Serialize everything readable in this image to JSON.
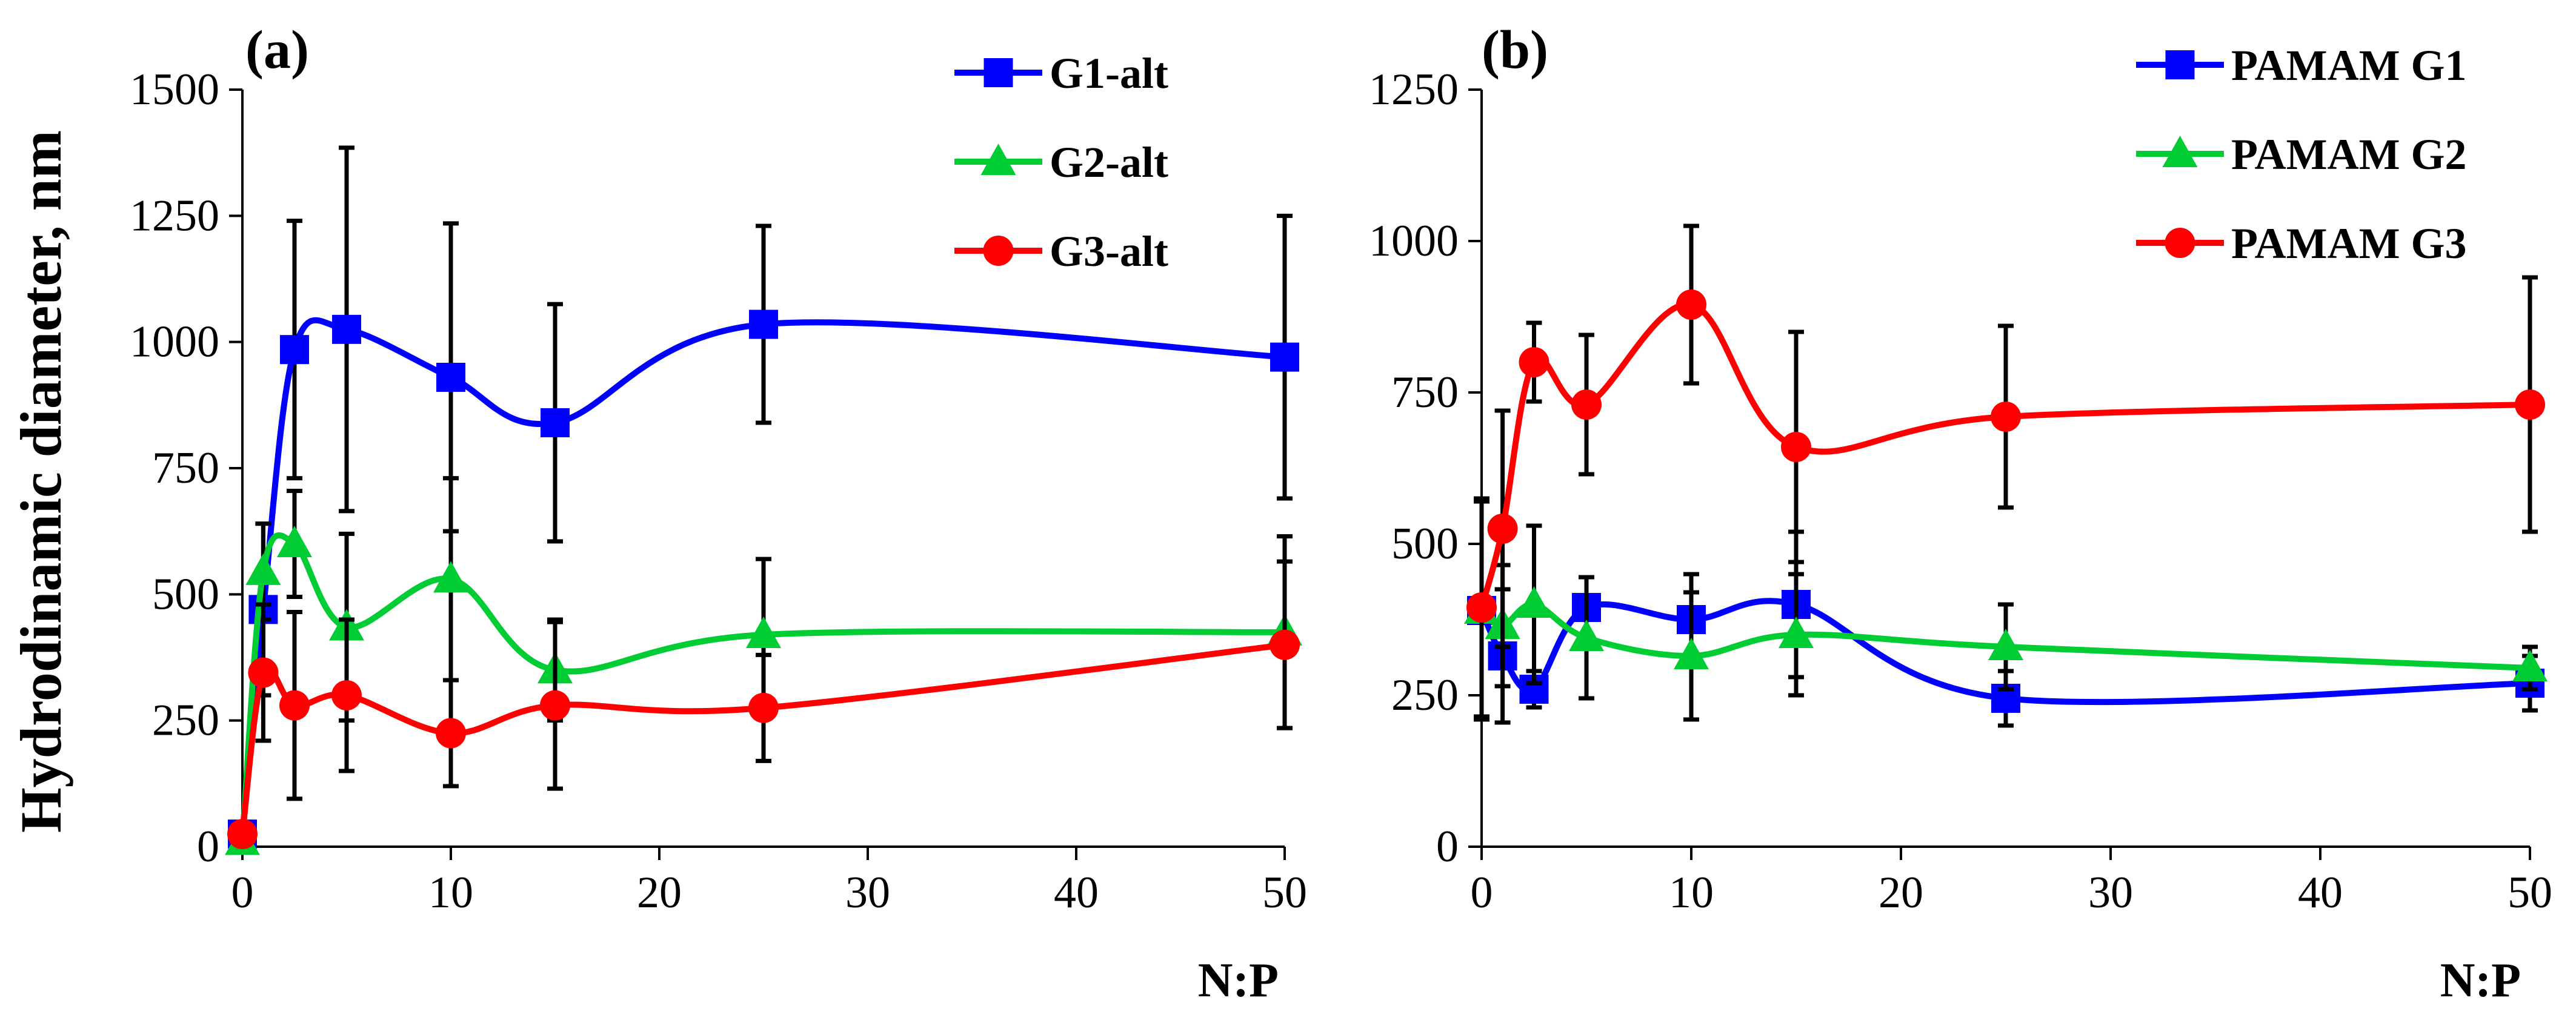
{
  "chart_data": [
    {
      "type": "line",
      "panel_label": "(a)",
      "title": "",
      "xlabel": "N:P",
      "ylabel": "Hydrodinamic diameter, nm",
      "xlim": [
        0,
        50
      ],
      "ylim": [
        0,
        1500
      ],
      "xticks": [
        "0",
        "10",
        "20",
        "30",
        "40",
        "50"
      ],
      "yticks": [
        "0",
        "250",
        "500",
        "750",
        "1000",
        "1250",
        "1500"
      ],
      "grid": false,
      "legend": "top-right",
      "x": [
        0,
        1,
        2.5,
        5,
        10,
        15,
        25,
        50
      ],
      "series": [
        {
          "name": "G1-alt",
          "color": "#0000ff",
          "marker": "square",
          "values": [
            25,
            470,
            985,
            1025,
            930,
            840,
            1035,
            970
          ],
          "errors": [
            0,
            170,
            255,
            360,
            305,
            235,
            195,
            280
          ]
        },
        {
          "name": "G2-alt",
          "color": "#00cc33",
          "marker": "triangle",
          "values": [
            10,
            545,
            600,
            435,
            530,
            350,
            420,
            425
          ],
          "errors": [
            0,
            95,
            105,
            185,
            200,
            100,
            150,
            190
          ]
        },
        {
          "name": "G3-alt",
          "color": "#ff0000",
          "marker": "circle",
          "values": [
            25,
            345,
            280,
            300,
            225,
            280,
            275,
            400
          ],
          "errors": [
            0,
            135,
            185,
            150,
            105,
            165,
            105,
            165
          ]
        }
      ]
    },
    {
      "type": "line",
      "panel_label": "(b)",
      "title": "",
      "xlabel": "N:P",
      "ylabel": "",
      "xlim": [
        0,
        50
      ],
      "ylim": [
        0,
        1250
      ],
      "xticks": [
        "0",
        "10",
        "20",
        "30",
        "40",
        "50"
      ],
      "yticks": [
        "0",
        "250",
        "500",
        "750",
        "1000",
        "1250"
      ],
      "grid": false,
      "legend": "top-right",
      "x": [
        0,
        1,
        2.5,
        5,
        10,
        15,
        25,
        50
      ],
      "series": [
        {
          "name": "PAMAM G1",
          "color": "#0000ff",
          "marker": "square",
          "values": [
            390,
            315,
            260,
            395,
            375,
            400,
            245,
            270
          ],
          "errors": [
            180,
            110,
            30,
            50,
            75,
            120,
            45,
            45
          ]
        },
        {
          "name": "PAMAM G2",
          "color": "#00cc33",
          "marker": "triangle",
          "values": [
            390,
            365,
            400,
            345,
            315,
            350,
            330,
            295
          ],
          "errors": [
            0,
            100,
            130,
            100,
            105,
            100,
            70,
            35
          ]
        },
        {
          "name": "PAMAM G3",
          "color": "#ff0000",
          "marker": "circle",
          "values": [
            395,
            525,
            800,
            730,
            895,
            660,
            710,
            730
          ],
          "errors": [
            180,
            195,
            65,
            115,
            130,
            190,
            150,
            210
          ]
        }
      ]
    }
  ]
}
